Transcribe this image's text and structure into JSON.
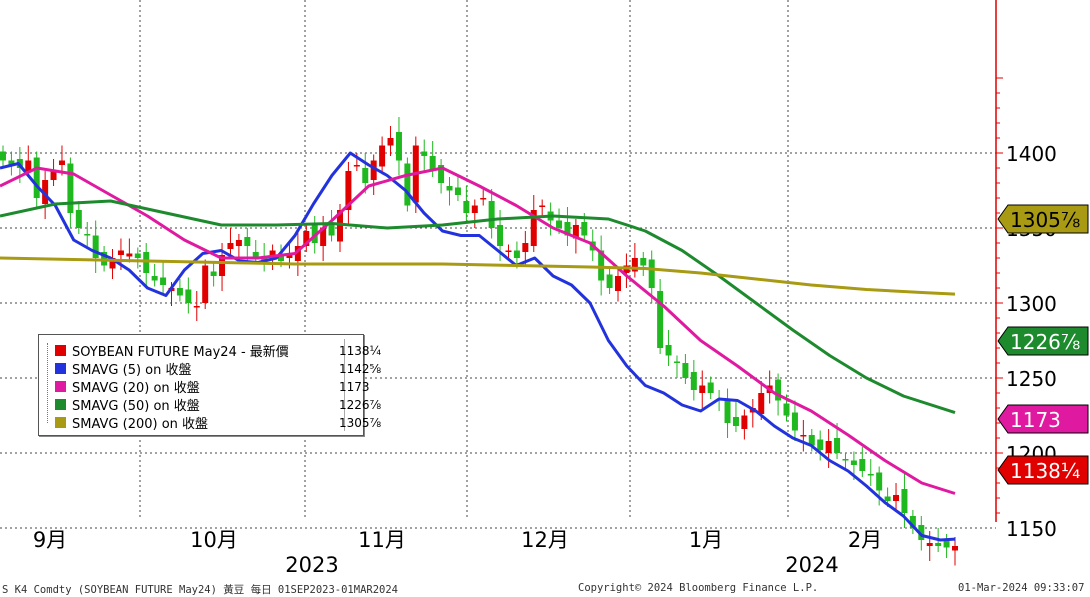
{
  "chart_data": {
    "type": "candlestick",
    "instrument": "SOYBEAN FUTURE May24",
    "yticks": [
      1150,
      1200,
      1250,
      1300,
      1350,
      1400
    ],
    "ylim": [
      1100,
      1450
    ],
    "month_labels": [
      "9月",
      "10月",
      "11月",
      "12月",
      "1月",
      "2月"
    ],
    "year_labels": [
      "2023",
      "2024"
    ],
    "price_tags": [
      {
        "label": "1305⅞",
        "value": 1305.875,
        "color": "#a89a12",
        "text_color": "#000000"
      },
      {
        "label": "1226⅞",
        "value": 1226.875,
        "color": "#1e8a2e",
        "text_color": "#ffffff"
      },
      {
        "label": "1173",
        "value": 1173,
        "color": "#e01aa0",
        "text_color": "#ffffff"
      },
      {
        "label": "1138¼",
        "value": 1138.25,
        "color": "#e00000",
        "text_color": "#ffffff"
      }
    ],
    "close_approx": [
      1395,
      1392,
      1390,
      1395,
      1370,
      1382,
      1388,
      1395,
      1360,
      1350,
      1345,
      1330,
      1325,
      1330,
      1335,
      1333,
      1330,
      1320,
      1315,
      1312,
      1310,
      1305,
      1300,
      1298,
      1325,
      1318,
      1332,
      1340,
      1342,
      1338,
      1330,
      1328,
      1335,
      1328,
      1332,
      1338,
      1348,
      1340,
      1350,
      1345,
      1362,
      1388,
      1392,
      1380,
      1395,
      1405,
      1410,
      1395,
      1365,
      1405,
      1398,
      1388,
      1380,
      1375,
      1372,
      1360,
      1365,
      1370,
      1350,
      1338,
      1335,
      1330,
      1340,
      1362,
      1365,
      1355,
      1350,
      1345,
      1352,
      1345,
      1335,
      1315,
      1310,
      1318,
      1325,
      1330,
      1325,
      1310,
      1270,
      1265,
      1260,
      1250,
      1242,
      1245,
      1240,
      1235,
      1220,
      1218,
      1225,
      1230,
      1240,
      1245,
      1235,
      1225,
      1215,
      1212,
      1205,
      1202,
      1208,
      1200,
      1195,
      1192,
      1188,
      1185,
      1175,
      1168,
      1172,
      1160,
      1150,
      1142,
      1140,
      1138,
      1137,
      1138
    ],
    "series": [
      {
        "name": "SOYBEAN FUTURE May24 - 最新價",
        "color": "#e00000",
        "last": "1138¼"
      },
      {
        "name": "SMAVG (5)  on 收盤",
        "color": "#2233dd",
        "last": "1142⅝",
        "points": [
          [
            0,
            1390
          ],
          [
            5,
            1393
          ],
          [
            10,
            1378
          ],
          [
            15,
            1365
          ],
          [
            20,
            1342
          ],
          [
            25,
            1335
          ],
          [
            30,
            1330
          ],
          [
            35,
            1322
          ],
          [
            40,
            1310
          ],
          [
            45,
            1305
          ],
          [
            50,
            1322
          ],
          [
            55,
            1333
          ],
          [
            60,
            1335
          ],
          [
            65,
            1328
          ],
          [
            70,
            1327
          ],
          [
            75,
            1330
          ],
          [
            80,
            1345
          ],
          [
            85,
            1366
          ],
          [
            90,
            1385
          ],
          [
            95,
            1400
          ],
          [
            100,
            1392
          ],
          [
            105,
            1385
          ],
          [
            110,
            1375
          ],
          [
            115,
            1360
          ],
          [
            120,
            1348
          ],
          [
            125,
            1345
          ],
          [
            130,
            1345
          ],
          [
            135,
            1335
          ],
          [
            140,
            1325
          ],
          [
            145,
            1330
          ],
          [
            150,
            1318
          ],
          [
            155,
            1312
          ],
          [
            160,
            1300
          ],
          [
            165,
            1275
          ],
          [
            170,
            1258
          ],
          [
            175,
            1245
          ],
          [
            180,
            1240
          ],
          [
            185,
            1232
          ],
          [
            190,
            1228
          ],
          [
            195,
            1236
          ],
          [
            200,
            1235
          ],
          [
            205,
            1228
          ],
          [
            210,
            1218
          ],
          [
            215,
            1210
          ],
          [
            220,
            1205
          ],
          [
            225,
            1195
          ],
          [
            230,
            1188
          ],
          [
            235,
            1178
          ],
          [
            240,
            1167
          ],
          [
            245,
            1158
          ],
          [
            250,
            1145
          ],
          [
            255,
            1142
          ],
          [
            259,
            1142.6
          ]
        ]
      },
      {
        "name": "SMAVG (20)  on 收盤",
        "color": "#e01aa0",
        "last": "1173",
        "points": [
          [
            0,
            1378
          ],
          [
            10,
            1390
          ],
          [
            20,
            1386
          ],
          [
            30,
            1372
          ],
          [
            40,
            1358
          ],
          [
            50,
            1342
          ],
          [
            60,
            1330
          ],
          [
            70,
            1330
          ],
          [
            80,
            1333
          ],
          [
            90,
            1355
          ],
          [
            100,
            1378
          ],
          [
            110,
            1385
          ],
          [
            120,
            1390
          ],
          [
            130,
            1378
          ],
          [
            140,
            1365
          ],
          [
            150,
            1350
          ],
          [
            160,
            1340
          ],
          [
            170,
            1318
          ],
          [
            180,
            1298
          ],
          [
            190,
            1275
          ],
          [
            200,
            1258
          ],
          [
            210,
            1240
          ],
          [
            220,
            1228
          ],
          [
            230,
            1212
          ],
          [
            240,
            1195
          ],
          [
            250,
            1180
          ],
          [
            259,
            1173
          ]
        ]
      },
      {
        "name": "SMAVG (50)  on 收盤",
        "color": "#1e8a2e",
        "last": "1226⅞",
        "points": [
          [
            0,
            1358
          ],
          [
            15,
            1366
          ],
          [
            30,
            1368
          ],
          [
            45,
            1360
          ],
          [
            60,
            1352
          ],
          [
            75,
            1352
          ],
          [
            90,
            1353
          ],
          [
            105,
            1350
          ],
          [
            120,
            1352
          ],
          [
            135,
            1356
          ],
          [
            150,
            1358
          ],
          [
            165,
            1356
          ],
          [
            175,
            1348
          ],
          [
            185,
            1335
          ],
          [
            195,
            1318
          ],
          [
            205,
            1300
          ],
          [
            215,
            1282
          ],
          [
            225,
            1265
          ],
          [
            235,
            1250
          ],
          [
            245,
            1238
          ],
          [
            259,
            1226.9
          ]
        ]
      },
      {
        "name": "SMAVG (200)  on 收盤",
        "color": "#a89a12",
        "last": "1305⅞",
        "points": [
          [
            0,
            1330
          ],
          [
            20,
            1329
          ],
          [
            40,
            1328
          ],
          [
            60,
            1327
          ],
          [
            80,
            1326
          ],
          [
            100,
            1326
          ],
          [
            120,
            1326
          ],
          [
            140,
            1325
          ],
          [
            160,
            1324
          ],
          [
            175,
            1323
          ],
          [
            190,
            1320
          ],
          [
            205,
            1316
          ],
          [
            220,
            1312
          ],
          [
            235,
            1309
          ],
          [
            250,
            1307
          ],
          [
            259,
            1305.9
          ]
        ]
      }
    ]
  },
  "legend": {
    "rows": [
      {
        "label": "SOYBEAN FUTURE May24 - 最新價",
        "value": "1138¼",
        "color": "#e00000"
      },
      {
        "label": "SMAVG (5)  on 收盤",
        "value": "1142⅝",
        "color": "#2233dd"
      },
      {
        "label": "SMAVG (20)  on 收盤",
        "value": "1173",
        "color": "#e01aa0"
      },
      {
        "label": "SMAVG (50)  on 收盤",
        "value": "1226⅞",
        "color": "#1e8a2e"
      },
      {
        "label": "SMAVG (200)  on 收盤",
        "value": "1305⅞",
        "color": "#a89a12"
      }
    ]
  },
  "footer": {
    "left": "S K4 Comdty (SOYBEAN FUTURE    May24) 黃豆  每日 01SEP2023-01MAR2024",
    "center": "Copyright© 2024 Bloomberg Finance L.P.",
    "right": "01-Mar-2024 09:33:07"
  }
}
